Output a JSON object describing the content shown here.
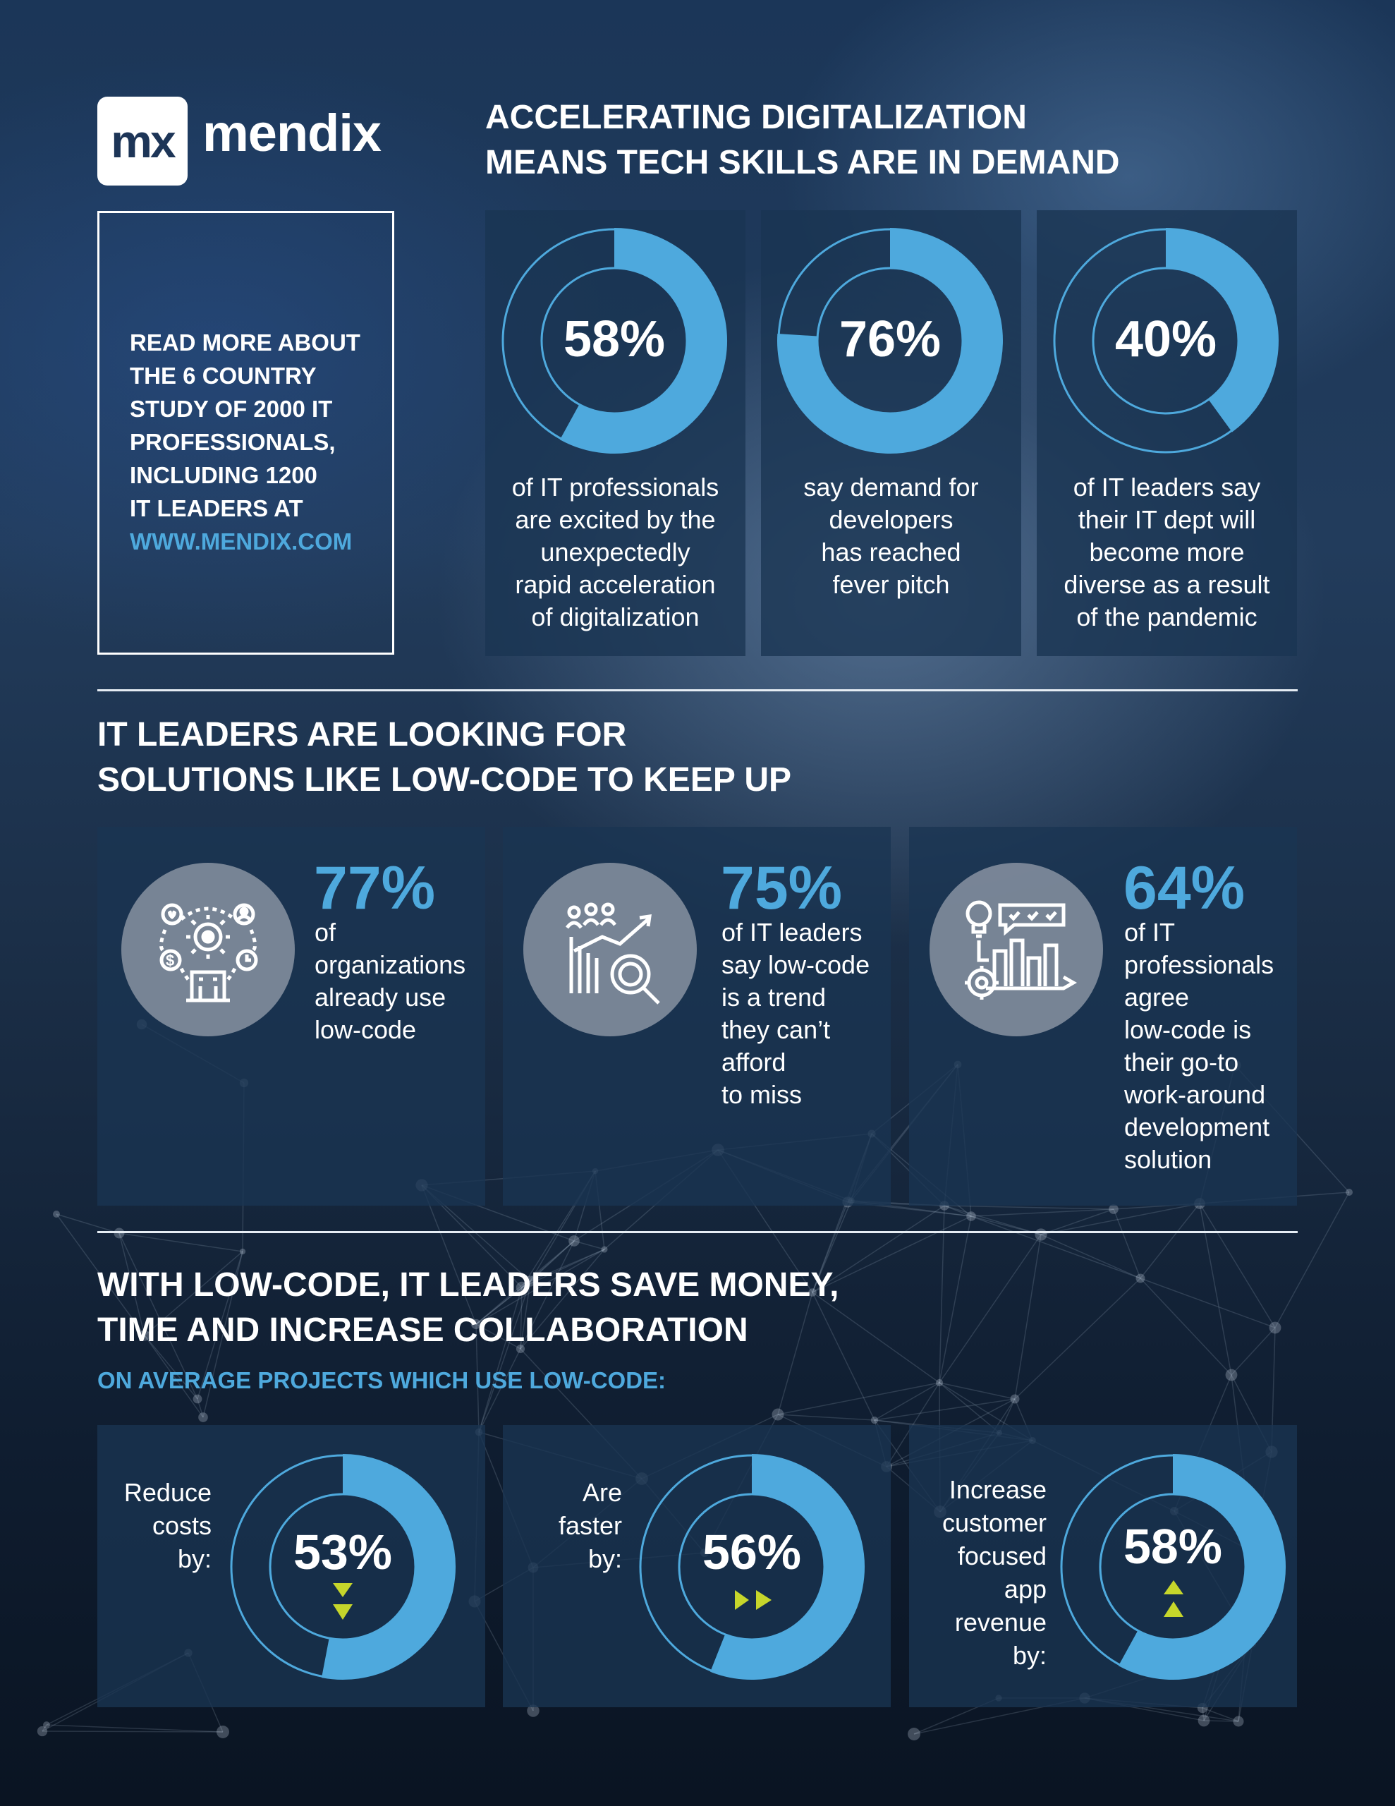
{
  "brand": {
    "logo_mark": "mx",
    "logo_word": "mendix"
  },
  "info_box": {
    "lines": [
      "READ MORE ABOUT",
      "THE 6 COUNTRY",
      "STUDY OF 2000 IT",
      "PROFESSIONALS,",
      "INCLUDING 1200",
      "IT LEADERS AT"
    ],
    "link": "WWW.MENDIX.COM"
  },
  "section1": {
    "title_lines": [
      "ACCELERATING DIGITALIZATION",
      "MEANS TECH SKILLS ARE IN DEMAND"
    ],
    "stats": [
      {
        "value": "58%",
        "fraction": 0.58,
        "caption_lines": [
          "of IT professionals",
          "are excited by the",
          "unexpectedly",
          "rapid acceleration",
          "of digitalization"
        ]
      },
      {
        "value": "76%",
        "fraction": 0.76,
        "caption_lines": [
          "say demand for",
          "developers",
          "has reached",
          "fever pitch"
        ]
      },
      {
        "value": "40%",
        "fraction": 0.4,
        "caption_lines": [
          "of IT leaders say",
          "their IT dept will",
          "become more",
          "diverse as a result",
          "of the pandemic"
        ]
      }
    ]
  },
  "section2": {
    "title_lines": [
      "IT LEADERS ARE LOOKING FOR",
      "SOLUTIONS LIKE LOW-CODE TO KEEP UP"
    ],
    "stats": [
      {
        "value": "77%",
        "icon": "organization-network-icon",
        "text_lines": [
          "of",
          "organizations",
          "already use",
          "low-code"
        ]
      },
      {
        "value": "75%",
        "icon": "people-trend-magnifier-icon",
        "text_lines": [
          "of IT leaders",
          "say low-code",
          "is a trend",
          "they can’t",
          "afford",
          "to miss"
        ]
      },
      {
        "value": "64%",
        "icon": "idea-chart-gear-icon",
        "text_lines": [
          "of IT",
          "professionals",
          "agree",
          "low-code is",
          "their go-to",
          "work-around",
          "development",
          "solution"
        ]
      }
    ]
  },
  "section3": {
    "title_lines": [
      "WITH LOW-CODE, IT LEADERS SAVE MONEY,",
      "TIME AND INCREASE COLLABORATION"
    ],
    "subtitle": "ON AVERAGE PROJECTS WHICH USE LOW-CODE:",
    "stats": [
      {
        "value": "53%",
        "fraction": 0.53,
        "arrow": "down",
        "label_lines": [
          "Reduce",
          "costs",
          "by:"
        ]
      },
      {
        "value": "56%",
        "fraction": 0.56,
        "arrow": "right",
        "label_lines": [
          "Are",
          "faster",
          "by:"
        ]
      },
      {
        "value": "58%",
        "fraction": 0.58,
        "arrow": "up",
        "label_lines": [
          "Increase",
          "customer",
          "focused",
          "app",
          "revenue",
          "by:"
        ]
      }
    ]
  },
  "colors": {
    "accent": "#4ea9dd",
    "panel": "#1a3452",
    "arrow": "#c6d62b"
  }
}
